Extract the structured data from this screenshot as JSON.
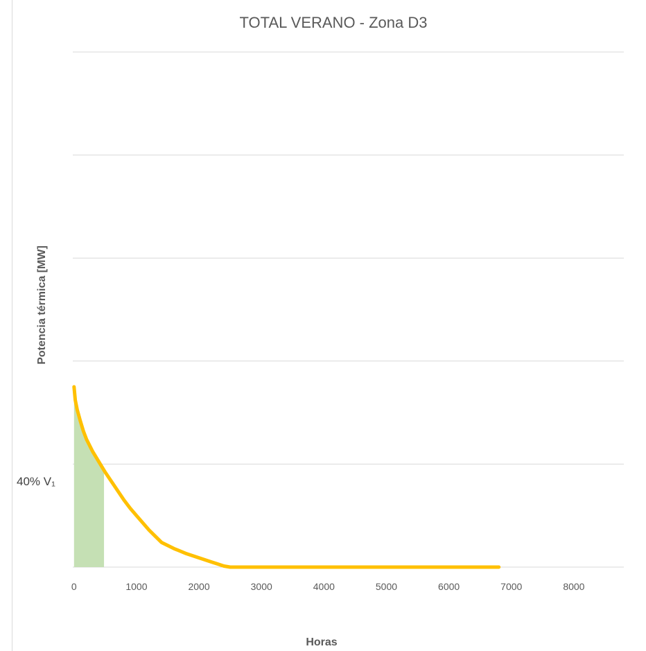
{
  "chart_data": {
    "type": "area",
    "title": "TOTAL VERANO - Zona D3",
    "xlabel": "Horas",
    "ylabel": "Potencia térmica [MW]",
    "xlim": [
      -20,
      8800
    ],
    "ylim": [
      0,
      5
    ],
    "x_ticks": [
      "0",
      "1000",
      "2000",
      "3000",
      "4000",
      "5000",
      "6000",
      "7000",
      "8000"
    ],
    "grid": true,
    "series": [
      {
        "color": "#ffc000",
        "x": [
          0,
          20,
          50,
          100,
          150,
          200,
          300,
          400,
          500,
          600,
          700,
          800,
          900,
          1000,
          1100,
          1200,
          1300,
          1400,
          1600,
          1800,
          2000,
          2200,
          2300,
          2400,
          2500,
          3000,
          4000,
          5000,
          6000,
          6800
        ],
        "y": [
          1.75,
          1.62,
          1.53,
          1.42,
          1.32,
          1.24,
          1.12,
          1.02,
          0.92,
          0.83,
          0.74,
          0.65,
          0.57,
          0.5,
          0.43,
          0.36,
          0.3,
          0.24,
          0.18,
          0.13,
          0.09,
          0.05,
          0.03,
          0.01,
          0.0,
          0.0,
          0.0,
          0.0,
          0.0,
          0.0
        ]
      }
    ],
    "shaded_region": {
      "label": "40% V₁",
      "x_end": 480,
      "color": "#c5e0b4"
    }
  }
}
